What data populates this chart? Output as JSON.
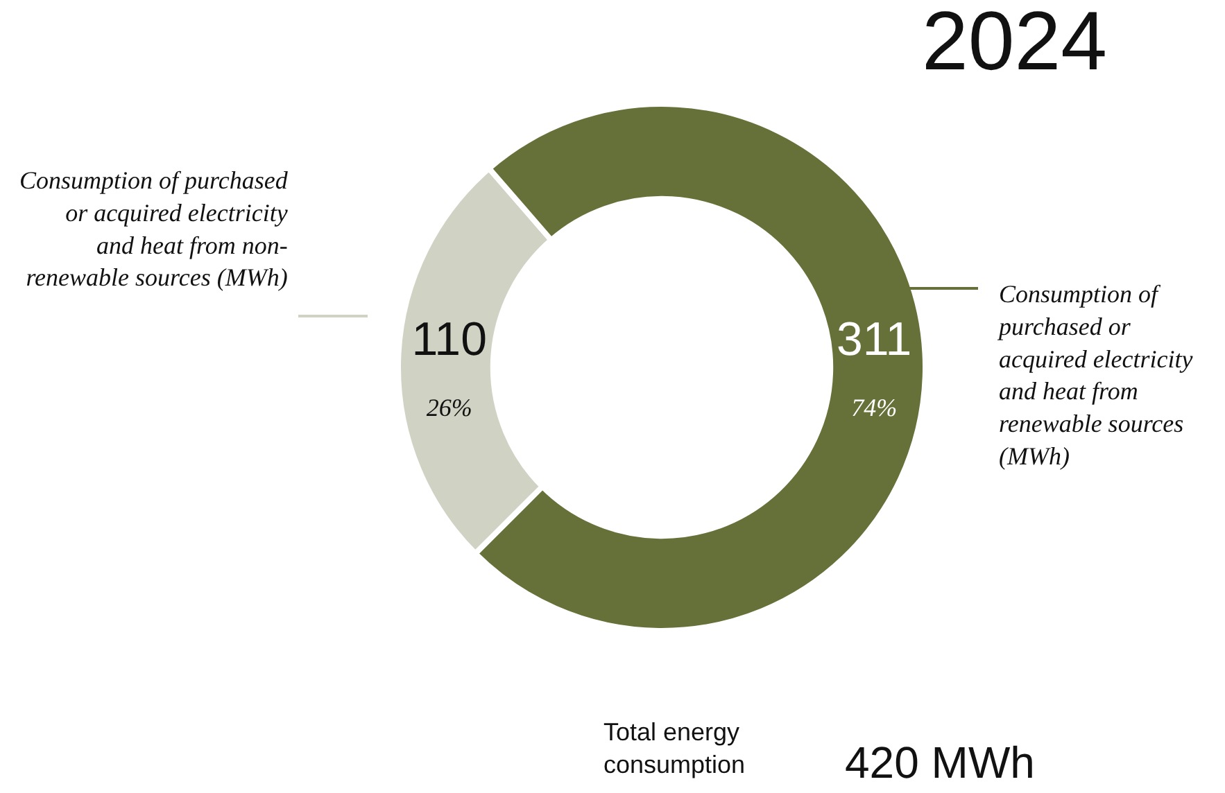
{
  "chart_data": {
    "type": "donut",
    "title": "2024",
    "categories": [
      "Consumption of purchased or acquired electricity and heat from non-renewable sources (MWh)",
      "Consumption of purchased or acquired electricity and heat from renewable sources (MWh)"
    ],
    "values": [
      110,
      311
    ],
    "colors": [
      "#d0d3c3",
      "#667139"
    ],
    "value_labels": [
      "110\n26%",
      "311\n74%"
    ],
    "annotations": [
      "Total energy consumption",
      "420 MWh"
    ],
    "legend": false
  }
}
